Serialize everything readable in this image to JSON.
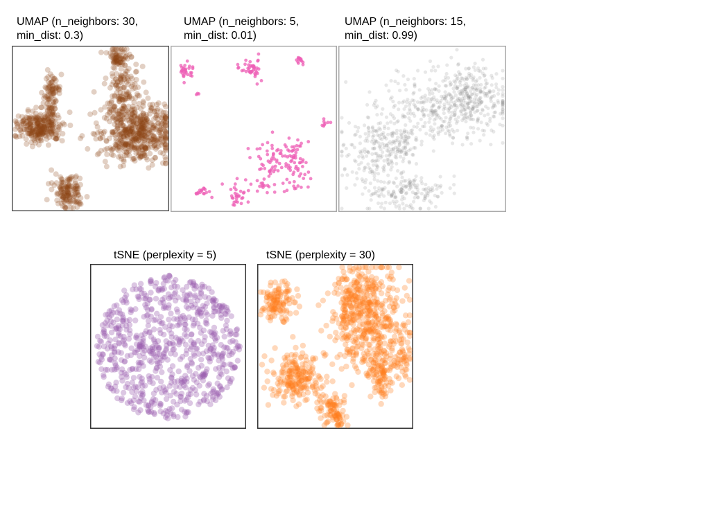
{
  "chart_data": [
    {
      "type": "scatter",
      "title_line1": "UMAP (n_neighbors: 30,",
      "title_line2": "min_dist: 0.3)",
      "point_color": "#8b4513",
      "opacity": 0.25,
      "frame_color": "#555555",
      "grid": false,
      "axes_ticks": false
    },
    {
      "type": "scatter",
      "title_line1": "UMAP (n_neighbors: 5,",
      "title_line2": "min_dist: 0.01)",
      "point_color": "#ee5fb5",
      "opacity": 0.75,
      "frame_color": "#aaaaaa",
      "grid": false,
      "axes_ticks": false
    },
    {
      "type": "scatter",
      "title_line1": "UMAP (n_neighbors: 15,",
      "title_line2": "min_dist: 0.99)",
      "point_color": "#8a8a8a",
      "opacity": 0.2,
      "frame_color": "#aaaaaa",
      "grid": false,
      "axes_ticks": false
    },
    {
      "type": "scatter",
      "title_line1": "tSNE (perplexity = 5)",
      "title_line2": "",
      "point_color": "#9b5fb0",
      "opacity": 0.35,
      "frame_color": "#333333",
      "grid": false,
      "axes_ticks": false
    },
    {
      "type": "scatter",
      "title_line1": "tSNE (perplexity = 30)",
      "title_line2": "",
      "point_color": "#ff7f1e",
      "opacity": 0.3,
      "frame_color": "#333333",
      "grid": false,
      "axes_ticks": false
    }
  ]
}
